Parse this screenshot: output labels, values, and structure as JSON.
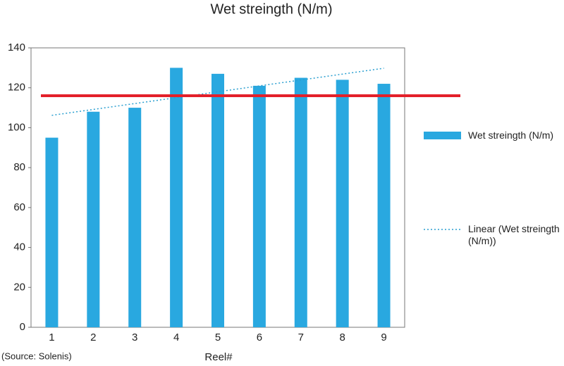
{
  "chart_data": {
    "type": "bar",
    "title": "Wet streingth (N/m)",
    "categories": [
      "1",
      "2",
      "3",
      "4",
      "5",
      "6",
      "7",
      "8",
      "9"
    ],
    "series": [
      {
        "name": "Wet streingth (N/m)",
        "color": "#29a8e0",
        "values": [
          95,
          108,
          110,
          130,
          127,
          121,
          125,
          124,
          122
        ]
      }
    ],
    "trend": {
      "name": "Linear (Wet streingth (N/m))",
      "color": "#2a9fd0",
      "x": [
        1,
        9
      ],
      "values": [
        106.2,
        129.8
      ]
    },
    "reference_line": {
      "value": 116,
      "color": "#e3202a"
    },
    "ylim": [
      0,
      140
    ],
    "yticks": [
      0,
      20,
      40,
      60,
      80,
      100,
      120,
      140
    ],
    "xlabel": "Reel#",
    "source": "(Source: Solenis)"
  }
}
